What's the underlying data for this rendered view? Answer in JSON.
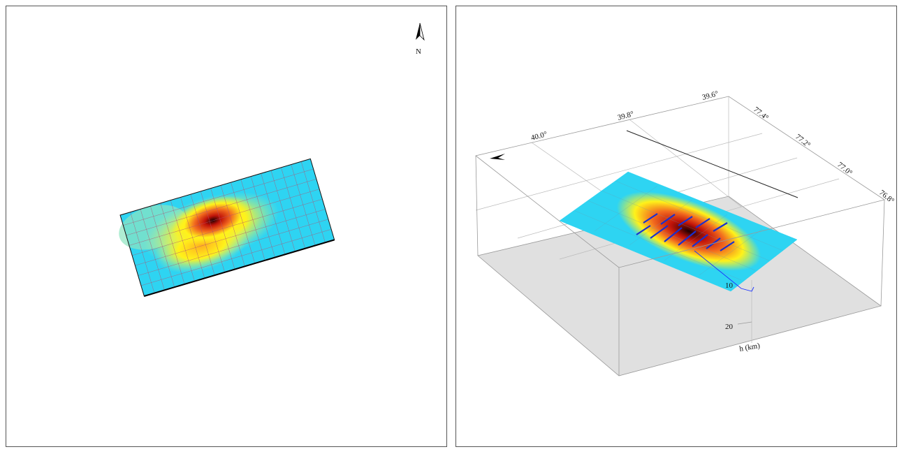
{
  "left_panel": {
    "north_label": "N"
  },
  "right_panel": {
    "latitude_labels": [
      "40.0°",
      "39.8°",
      "39.6°"
    ],
    "longitude_labels": [
      "77.4°",
      "77.2°",
      "77.0°",
      "76.8°"
    ],
    "depth_labels": [
      "10",
      "20"
    ],
    "depth_axis_label": "h (km)"
  },
  "colors": {
    "low": "#22d3f5",
    "mid": "#fff21a",
    "high": "#d21a0e",
    "peak": "#300000",
    "floor": "#e0e0e0"
  }
}
